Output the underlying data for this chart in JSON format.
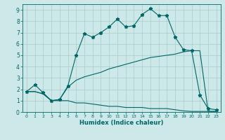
{
  "bg_color": "#cce8e8",
  "grid_color": "#aacccc",
  "line_color": "#006666",
  "xlabel": "Humidex (Indice chaleur)",
  "xlim": [
    -0.5,
    23.5
  ],
  "ylim": [
    0,
    9.5
  ],
  "xticks": [
    0,
    1,
    2,
    3,
    4,
    5,
    6,
    7,
    8,
    9,
    10,
    11,
    12,
    13,
    14,
    15,
    16,
    17,
    18,
    19,
    20,
    21,
    22,
    23
  ],
  "yticks": [
    0,
    1,
    2,
    3,
    4,
    5,
    6,
    7,
    8,
    9
  ],
  "line1_x": [
    0,
    1,
    2,
    3,
    4,
    5,
    6,
    7,
    8,
    9,
    10,
    11,
    12,
    13,
    14,
    15,
    16,
    17,
    18,
    19,
    20,
    21,
    22,
    23
  ],
  "line1_y": [
    1.8,
    2.4,
    1.7,
    1.0,
    1.1,
    2.3,
    5.0,
    6.9,
    6.6,
    7.0,
    7.5,
    8.2,
    7.5,
    7.6,
    8.6,
    9.1,
    8.5,
    8.5,
    6.6,
    5.5,
    5.4,
    1.5,
    0.3,
    0.2
  ],
  "line2_x": [
    0,
    1,
    2,
    3,
    4,
    5,
    6,
    7,
    8,
    9,
    10,
    11,
    12,
    13,
    14,
    15,
    16,
    17,
    18,
    19,
    20,
    21,
    22,
    23
  ],
  "line2_y": [
    1.8,
    1.8,
    1.6,
    1.0,
    1.1,
    2.2,
    2.8,
    3.1,
    3.3,
    3.5,
    3.8,
    4.0,
    4.2,
    4.4,
    4.6,
    4.8,
    4.9,
    5.0,
    5.1,
    5.3,
    5.4,
    5.4,
    0.05,
    0.05
  ],
  "line3_x": [
    0,
    1,
    2,
    3,
    4,
    5,
    6,
    7,
    8,
    9,
    10,
    11,
    12,
    13,
    14,
    15,
    16,
    17,
    18,
    19,
    20,
    21,
    22,
    23
  ],
  "line3_y": [
    1.8,
    1.8,
    1.6,
    1.0,
    1.0,
    1.0,
    0.8,
    0.8,
    0.7,
    0.6,
    0.5,
    0.5,
    0.4,
    0.4,
    0.4,
    0.3,
    0.3,
    0.3,
    0.2,
    0.1,
    0.05,
    0.05,
    0.05,
    0.05
  ],
  "figsize": [
    3.2,
    2.0
  ],
  "dpi": 100
}
